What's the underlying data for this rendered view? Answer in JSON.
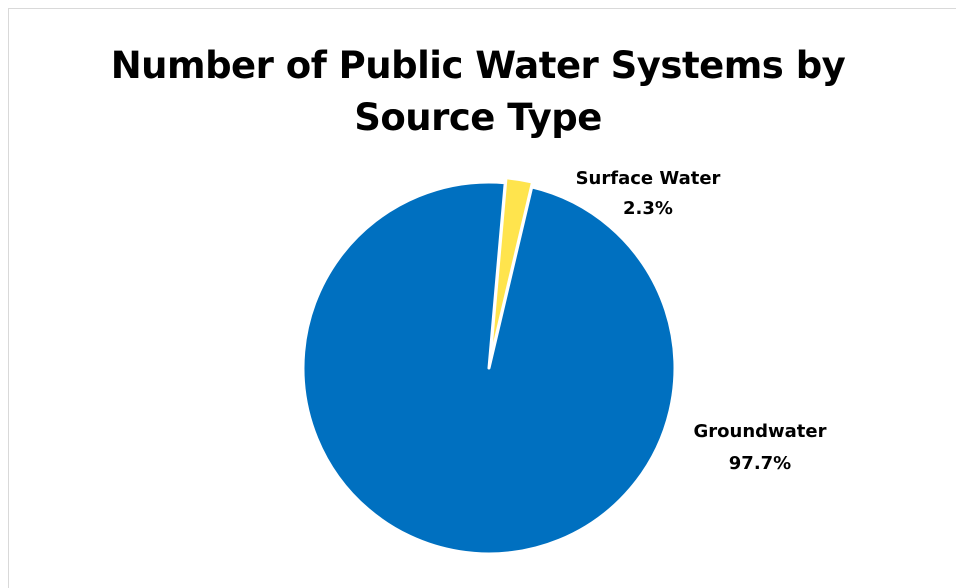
{
  "chart_data": {
    "type": "pie",
    "title_lines": [
      "Number of Public Water Systems by",
      "Source Type"
    ],
    "slices": [
      {
        "name": "Surface Water",
        "value": 2.3,
        "label": "2.3%",
        "color": "#FFE44D"
      },
      {
        "name": "Groundwater",
        "value": 97.7,
        "label": "97.7%",
        "color": "#0070C0"
      }
    ],
    "legend": "none",
    "data_labels": "outside"
  }
}
